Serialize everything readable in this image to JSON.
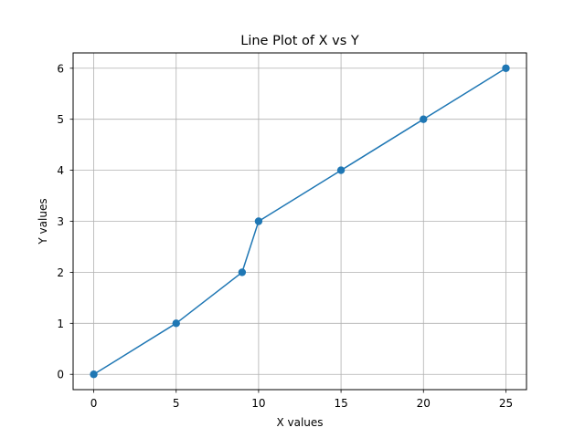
{
  "chart_data": {
    "type": "line",
    "title": "Line Plot of X vs Y",
    "xlabel": "X values",
    "ylabel": "Y values",
    "x": [
      0,
      5,
      9,
      10,
      15,
      20,
      25
    ],
    "series": [
      {
        "values": [
          0,
          1,
          2,
          3,
          4,
          5,
          6
        ],
        "color": "#1f77b4",
        "marker": "circle"
      }
    ],
    "xlim": [
      -1.25,
      26.25
    ],
    "ylim": [
      -0.3,
      6.3
    ],
    "xticks": [
      0,
      5,
      10,
      15,
      20,
      25
    ],
    "xtick_labels": [
      "0",
      "5",
      "10",
      "15",
      "20",
      "25"
    ],
    "yticks": [
      0,
      1,
      2,
      3,
      4,
      5,
      6
    ],
    "ytick_labels": [
      "0",
      "1",
      "2",
      "3",
      "4",
      "5",
      "6"
    ],
    "grid": true,
    "grid_color": "#b0b0b0",
    "legend": false
  }
}
